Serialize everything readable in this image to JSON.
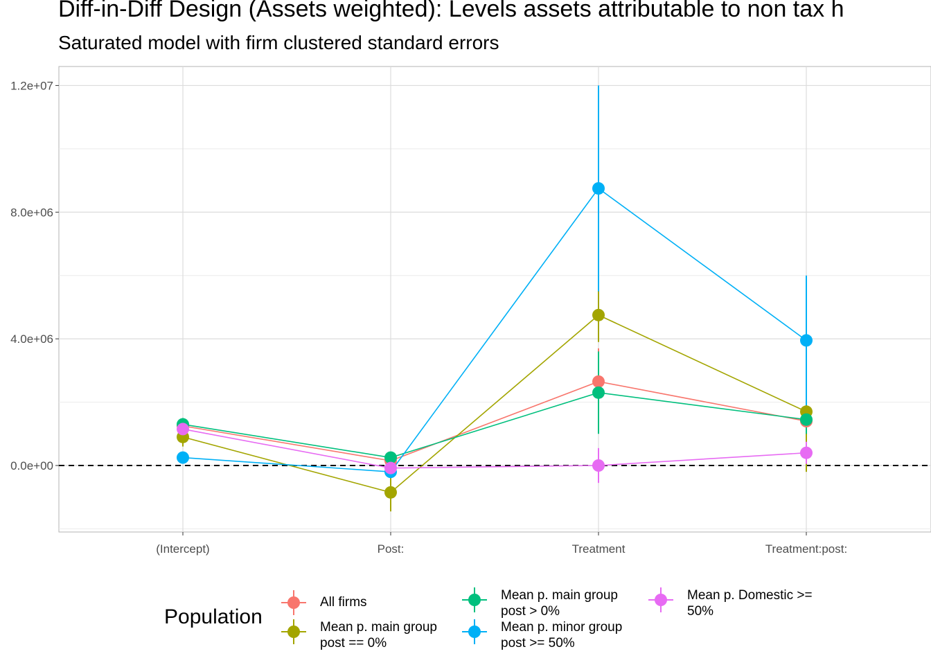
{
  "title": "Diff-in-Diff Design (Assets weighted): Levels assets attributable to non tax h",
  "subtitle": "Saturated model with firm clustered standard errors",
  "chart_data": {
    "type": "line",
    "categories": [
      "(Intercept)",
      "Post:",
      "Treatment",
      "Treatment:post:"
    ],
    "y_tick_labels": [
      "0.0e+00",
      "4.0e+06",
      "8.0e+06",
      "1.2e+07"
    ],
    "y_ticks": [
      0,
      4000000,
      8000000,
      12000000
    ],
    "ylim": [
      -2100000,
      12600000
    ],
    "reference_line": 0,
    "grid": true,
    "legend_title": "Population",
    "legend_position": "bottom",
    "series": [
      {
        "name": "All firms",
        "color": "#F8766D",
        "values": [
          1250000,
          150000,
          2650000,
          1400000
        ],
        "lower": [
          1050000,
          -50000,
          1600000,
          1000000
        ],
        "upper": [
          1450000,
          350000,
          3700000,
          1800000
        ]
      },
      {
        "name": "Mean p. main group post == 0%",
        "color": "#A3A500",
        "values": [
          900000,
          -850000,
          4750000,
          1700000
        ],
        "lower": [
          600000,
          -1450000,
          3900000,
          -200000
        ],
        "upper": [
          1200000,
          -250000,
          5600000,
          3600000
        ]
      },
      {
        "name": "Mean p. main group post > 0%",
        "color": "#00BF7D",
        "values": [
          1300000,
          250000,
          2300000,
          1450000
        ],
        "lower": [
          1100000,
          100000,
          1000000,
          1000000
        ],
        "upper": [
          1500000,
          400000,
          3600000,
          1900000
        ]
      },
      {
        "name": "Mean p. minor group post >= 50%",
        "color": "#00B0F6",
        "values": [
          250000,
          -200000,
          8750000,
          3950000
        ],
        "lower": [
          150000,
          -400000,
          5500000,
          1900000
        ],
        "upper": [
          350000,
          0,
          12000000,
          6000000
        ]
      },
      {
        "name": "Mean p. Domestic >= 50%",
        "color": "#E76BF3",
        "values": [
          1150000,
          -80000,
          0,
          400000
        ],
        "lower": [
          950000,
          -230000,
          -550000,
          50000
        ],
        "upper": [
          1350000,
          70000,
          550000,
          750000
        ]
      }
    ]
  },
  "legend": {
    "title": "Population",
    "items": [
      {
        "label": "All firms",
        "color": "#F8766D"
      },
      {
        "label": "Mean p. main group post == 0%",
        "color": "#A3A500"
      },
      {
        "label": "Mean p. main group post > 0%",
        "color": "#00BF7D"
      },
      {
        "label": "Mean p. minor group post >= 50%",
        "color": "#00B0F6"
      },
      {
        "label": "Mean p. Domestic >= 50%",
        "color": "#E76BF3"
      }
    ]
  }
}
